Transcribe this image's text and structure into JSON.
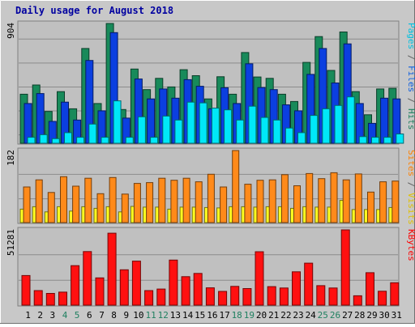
{
  "chart_data": [
    {
      "type": "bar",
      "title": "Daily usage for August 2018",
      "categories": [
        "1",
        "2",
        "3",
        "4",
        "5",
        "6",
        "7",
        "8",
        "9",
        "10",
        "11",
        "12",
        "13",
        "14",
        "15",
        "16",
        "17",
        "18",
        "19",
        "20",
        "21",
        "22",
        "23",
        "24",
        "25",
        "26",
        "27",
        "28",
        "29",
        "30",
        "31"
      ],
      "weekend_categories": [
        "4",
        "5",
        "11",
        "12",
        "18",
        "19",
        "25",
        "26"
      ],
      "ylim": [
        0,
        904
      ],
      "ytick_label": "904",
      "side_legend": [
        {
          "text": "Pages",
          "color": "#00c0e0"
        },
        {
          "text": " / ",
          "color": "#606060"
        },
        {
          "text": "Files",
          "color": "#1060e0"
        },
        {
          "text": " / ",
          "color": "#606060"
        },
        {
          "text": "Hits",
          "color": "#208060"
        }
      ],
      "series": [
        {
          "name": "Hits",
          "color": "#188a5a",
          "values": [
            370,
            440,
            240,
            390,
            260,
            715,
            300,
            904,
            255,
            560,
            405,
            490,
            425,
            555,
            510,
            335,
            502,
            370,
            685,
            500,
            490,
            370,
            315,
            610,
            805,
            550,
            840,
            390,
            215,
            410,
            415
          ]
        },
        {
          "name": "Files",
          "color": "#0b3fe0",
          "values": [
            300,
            375,
            165,
            310,
            175,
            625,
            245,
            835,
            190,
            485,
            335,
            410,
            340,
            480,
            430,
            260,
            419,
            300,
            600,
            420,
            405,
            290,
            245,
            520,
            715,
            455,
            750,
            300,
            150,
            340,
            335
          ]
        },
        {
          "name": "Pages",
          "color": "#00e8f8",
          "values": [
            45,
            65,
            35,
            80,
            45,
            145,
            45,
            320,
            45,
            200,
            45,
            205,
            175,
            310,
            305,
            265,
            252,
            175,
            280,
            195,
            175,
            115,
            80,
            210,
            260,
            285,
            350,
            50,
            45,
            45,
            70
          ]
        }
      ]
    },
    {
      "type": "bar",
      "categories": [
        "1",
        "2",
        "3",
        "4",
        "5",
        "6",
        "7",
        "8",
        "9",
        "10",
        "11",
        "12",
        "13",
        "14",
        "15",
        "16",
        "17",
        "18",
        "19",
        "20",
        "21",
        "22",
        "23",
        "24",
        "25",
        "26",
        "27",
        "28",
        "29",
        "30",
        "31"
      ],
      "ylim": [
        0,
        182
      ],
      "ytick_label": "182",
      "side_legend": [
        {
          "text": "Sites",
          "color": "#ff8000"
        },
        {
          "text": " / ",
          "color": "#606060"
        },
        {
          "text": "Visits",
          "color": "#e0c000"
        }
      ],
      "series": [
        {
          "name": "Visits",
          "color": "#ffff20",
          "values": [
            34,
            40,
            27,
            40,
            29,
            40,
            36,
            40,
            27,
            41,
            39,
            39,
            34,
            39,
            39,
            38,
            37,
            40,
            40,
            39,
            40,
            40,
            36,
            40,
            39,
            39,
            56,
            33,
            33,
            33,
            38
          ]
        },
        {
          "name": "Sites",
          "color": "#ff8a1a",
          "values": [
            90,
            108,
            76,
            116,
            92,
            112,
            73,
            114,
            72,
            99,
            101,
            112,
            107,
            112,
            103,
            122,
            90,
            182,
            97,
            107,
            108,
            121,
            93,
            124,
            111,
            126,
            108,
            123,
            77,
            103,
            105
          ]
        }
      ]
    },
    {
      "type": "bar",
      "categories": [
        "1",
        "2",
        "3",
        "4",
        "5",
        "6",
        "7",
        "8",
        "9",
        "10",
        "11",
        "12",
        "13",
        "14",
        "15",
        "16",
        "17",
        "18",
        "19",
        "20",
        "21",
        "22",
        "23",
        "24",
        "25",
        "26",
        "27",
        "28",
        "29",
        "30",
        "31"
      ],
      "ylim": [
        0,
        51281
      ],
      "ytick_label": "51281",
      "side_legend": [
        {
          "text": "KBytes",
          "color": "#ff0000"
        }
      ],
      "series": [
        {
          "name": "KBytes",
          "color": "#ff1010",
          "values": [
            20200,
            9900,
            8000,
            8900,
            26900,
            36500,
            18600,
            49000,
            24100,
            30000,
            9900,
            11000,
            30700,
            19400,
            21600,
            11800,
            9400,
            12800,
            11300,
            36400,
            12600,
            11700,
            22700,
            28600,
            13300,
            11700,
            51281,
            6400,
            22100,
            9500,
            15300
          ]
        }
      ]
    }
  ]
}
